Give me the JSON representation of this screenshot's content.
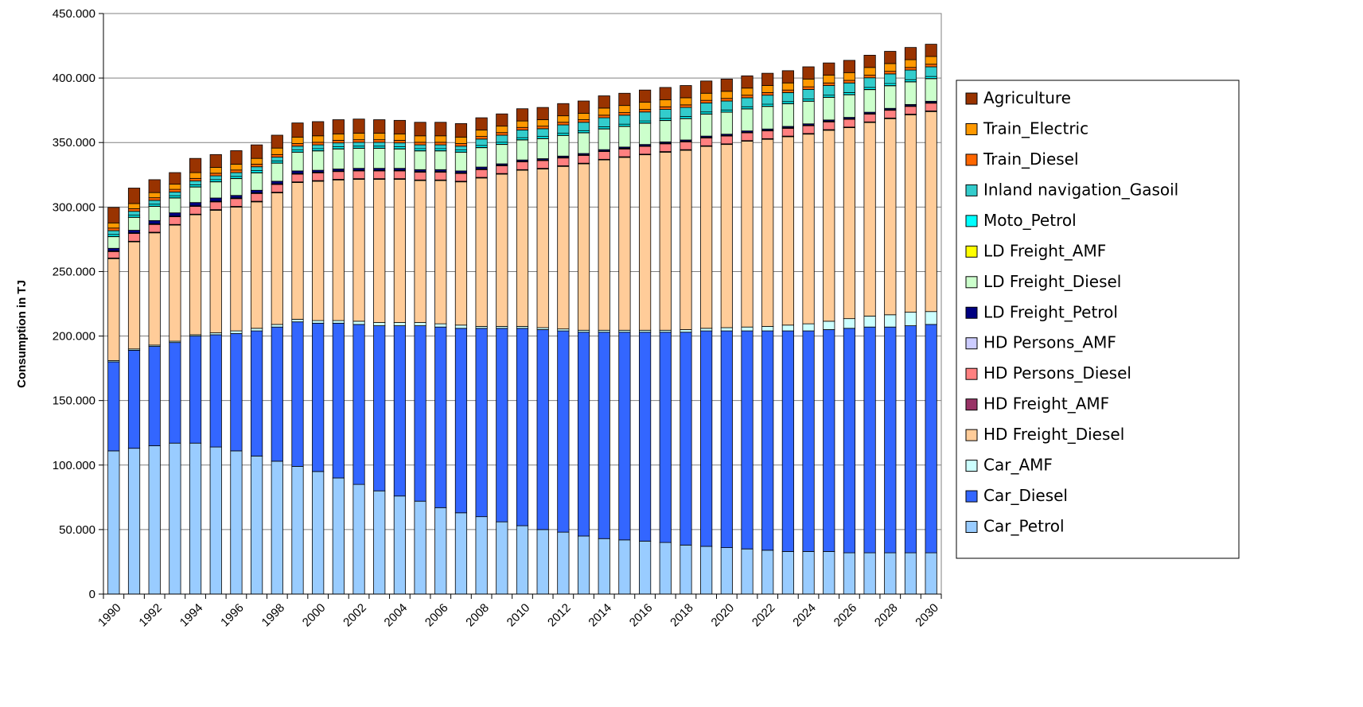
{
  "chart_data": {
    "type": "bar",
    "stacked": true,
    "title": "",
    "xlabel": "",
    "ylabel": "Consumption in TJ",
    "ylim": [
      0,
      450000
    ],
    "ytick_step": 50000,
    "ytick_labels": [
      "0",
      "50.000",
      "100.000",
      "150.000",
      "200.000",
      "250.000",
      "300.000",
      "350.000",
      "400.000",
      "450.000"
    ],
    "xtick_labels": [
      "1990",
      "1992",
      "1994",
      "1996",
      "1998",
      "2000",
      "2002",
      "2004",
      "2006",
      "2008",
      "2010",
      "2012",
      "2014",
      "2016",
      "2018",
      "2020",
      "2022",
      "2024",
      "2026",
      "2028",
      "2030"
    ],
    "grid": true,
    "legend_position": "right",
    "categories": [
      "1990",
      "1991",
      "1992",
      "1993",
      "1994",
      "1995",
      "1996",
      "1997",
      "1998",
      "1999",
      "2000",
      "2001",
      "2002",
      "2003",
      "2004",
      "2005",
      "2006",
      "2007",
      "2008",
      "2009",
      "2010",
      "2011",
      "2012",
      "2013",
      "2014",
      "2015",
      "2016",
      "2017",
      "2018",
      "2019",
      "2020",
      "2021",
      "2022",
      "2023",
      "2024",
      "2025",
      "2026",
      "2027",
      "2028",
      "2029",
      "2030"
    ],
    "series": [
      {
        "name": "Car_Petrol",
        "color": "#99ccff",
        "values": [
          111000,
          113000,
          115000,
          117000,
          117000,
          114000,
          111000,
          107000,
          103000,
          99000,
          95000,
          90000,
          85000,
          80000,
          76000,
          72000,
          67000,
          63000,
          60000,
          56000,
          53000,
          50000,
          48000,
          45000,
          43000,
          42000,
          41000,
          40000,
          38000,
          37000,
          36000,
          35000,
          34000,
          33000,
          33000,
          33000,
          32000,
          32000,
          32000,
          32000,
          32000
        ]
      },
      {
        "name": "Car_Diesel",
        "color": "#3366ff",
        "values": [
          69000,
          76000,
          77000,
          78000,
          83000,
          87000,
          91000,
          97000,
          104000,
          112000,
          115000,
          120000,
          124000,
          128000,
          132000,
          136000,
          140000,
          143000,
          146000,
          150000,
          153000,
          155000,
          156000,
          158000,
          160000,
          161000,
          162000,
          163000,
          165000,
          167000,
          168000,
          169000,
          170000,
          171000,
          171000,
          172000,
          174000,
          175000,
          175000,
          176000,
          177000
        ]
      },
      {
        "name": "Car_AMF",
        "color": "#ccffff",
        "values": [
          1000,
          1000,
          1000,
          1000,
          1000,
          1500,
          2000,
          2000,
          2000,
          2000,
          2000,
          2000,
          2500,
          2500,
          2500,
          2500,
          2500,
          2500,
          1500,
          1500,
          1500,
          1500,
          1500,
          1500,
          1500,
          1500,
          1500,
          1500,
          2000,
          2000,
          2500,
          3000,
          3500,
          4500,
          5500,
          6500,
          7500,
          8500,
          9500,
          10500,
          10000
        ]
      },
      {
        "name": "HD Freight_Diesel",
        "color": "#ffcc99",
        "values": [
          79000,
          83000,
          87000,
          90000,
          93000,
          95000,
          96000,
          98000,
          102000,
          106000,
          108000,
          109000,
          110000,
          111000,
          111000,
          110000,
          111000,
          111000,
          115000,
          118000,
          121000,
          123000,
          126000,
          129000,
          132000,
          134000,
          136000,
          138000,
          139000,
          141000,
          142000,
          144000,
          145000,
          146000,
          147000,
          148000,
          148000,
          150000,
          152000,
          153000,
          155000
        ]
      },
      {
        "name": "HD Freight_AMF",
        "color": "#993366",
        "values": [
          500,
          500,
          500,
          500,
          500,
          500,
          500,
          500,
          500,
          500,
          500,
          500,
          500,
          500,
          500,
          500,
          500,
          500,
          500,
          500,
          500,
          500,
          500,
          500,
          500,
          500,
          500,
          500,
          500,
          500,
          500,
          500,
          500,
          500,
          500,
          500,
          500,
          500,
          500,
          500,
          500
        ]
      },
      {
        "name": "HD Persons_Diesel",
        "color": "#ff8080",
        "values": [
          5000,
          6000,
          6000,
          6000,
          6000,
          6000,
          6000,
          6000,
          6000,
          6000,
          6000,
          6000,
          6000,
          6000,
          6000,
          6000,
          6000,
          6000,
          6000,
          6000,
          6000,
          6000,
          6000,
          6000,
          6000,
          6000,
          6000,
          6000,
          6000,
          6000,
          6000,
          6000,
          6000,
          6000,
          6000,
          6000,
          6000,
          6000,
          6000,
          6000,
          6000
        ]
      },
      {
        "name": "HD Persons_AMF",
        "color": "#ccccff",
        "values": [
          500,
          500,
          500,
          500,
          500,
          500,
          500,
          500,
          500,
          500,
          500,
          500,
          500,
          500,
          500,
          500,
          500,
          500,
          500,
          500,
          500,
          500,
          500,
          500,
          500,
          500,
          500,
          500,
          500,
          500,
          500,
          500,
          500,
          500,
          500,
          500,
          500,
          500,
          500,
          500,
          500
        ]
      },
      {
        "name": "LD Freight_Petrol",
        "color": "#000080",
        "values": [
          2000,
          2000,
          2500,
          2500,
          2500,
          2500,
          2000,
          2000,
          2000,
          2000,
          1500,
          1500,
          1500,
          1500,
          1500,
          1500,
          1500,
          1500,
          1500,
          1000,
          1000,
          1000,
          1000,
          1000,
          1000,
          1000,
          1000,
          1000,
          1000,
          1000,
          1000,
          1000,
          1000,
          1000,
          1000,
          1000,
          1000,
          1000,
          1000,
          1000,
          1000
        ]
      },
      {
        "name": "LD Freight_Diesel",
        "color": "#ccffcc",
        "values": [
          9000,
          10000,
          11000,
          11500,
          12000,
          12500,
          13000,
          13500,
          14000,
          14500,
          15000,
          15500,
          15500,
          15500,
          15000,
          14500,
          14500,
          14500,
          15000,
          15000,
          15500,
          15500,
          16000,
          16000,
          16000,
          16000,
          16500,
          16500,
          16500,
          17000,
          17000,
          17000,
          17500,
          17500,
          17500,
          17500,
          17500,
          17500,
          17500,
          17500,
          17500
        ]
      },
      {
        "name": "LD Freight_AMF",
        "color": "#ffff00",
        "values": [
          200,
          200,
          200,
          200,
          200,
          200,
          200,
          200,
          200,
          200,
          200,
          200,
          200,
          200,
          200,
          200,
          200,
          200,
          200,
          200,
          200,
          200,
          200,
          200,
          200,
          200,
          200,
          200,
          200,
          200,
          200,
          200,
          200,
          200,
          200,
          200,
          200,
          200,
          200,
          200,
          200
        ]
      },
      {
        "name": "Moto_Petrol",
        "color": "#00ffff",
        "values": [
          1500,
          1500,
          1500,
          1500,
          1500,
          1500,
          1500,
          1500,
          1500,
          1500,
          1500,
          1500,
          1500,
          1500,
          1500,
          1500,
          1500,
          1500,
          1500,
          1500,
          1500,
          1500,
          1500,
          1500,
          1500,
          1500,
          1500,
          1500,
          1500,
          1500,
          1500,
          1500,
          1500,
          1500,
          1500,
          1500,
          1500,
          1500,
          1500,
          1500,
          1500
        ]
      },
      {
        "name": "Inland navigation_Gasoil",
        "color": "#33cccc",
        "values": [
          3000,
          3000,
          3000,
          3000,
          3000,
          3000,
          3000,
          3000,
          3000,
          3000,
          3000,
          3000,
          3000,
          3000,
          3000,
          3000,
          3000,
          3000,
          5000,
          5500,
          6000,
          6000,
          6500,
          6500,
          7000,
          7000,
          7000,
          7000,
          7000,
          7000,
          7000,
          7000,
          7000,
          7000,
          7500,
          7500,
          7500,
          7500,
          7500,
          7500,
          7500
        ]
      },
      {
        "name": "Train_Diesel",
        "color": "#ff6600",
        "values": [
          2000,
          2000,
          2000,
          2000,
          2000,
          2000,
          2000,
          2000,
          2000,
          2000,
          2000,
          2000,
          2000,
          2000,
          2000,
          2000,
          2000,
          2000,
          2000,
          2000,
          2000,
          2000,
          2000,
          2000,
          2000,
          2000,
          2000,
          2000,
          2000,
          2000,
          2000,
          2000,
          2000,
          2000,
          2000,
          2000,
          2000,
          2000,
          2000,
          2000,
          2000
        ]
      },
      {
        "name": "Train_Electric",
        "color": "#ff9900",
        "values": [
          4000,
          4000,
          4000,
          4000,
          4500,
          4500,
          4500,
          4500,
          5000,
          5000,
          5000,
          5000,
          5000,
          5000,
          5000,
          5000,
          5000,
          5000,
          5000,
          5000,
          5000,
          5000,
          5000,
          5000,
          5500,
          5500,
          5500,
          5500,
          5500,
          5500,
          5500,
          5500,
          5500,
          5500,
          6000,
          6000,
          6000,
          6000,
          6000,
          6000,
          6000
        ]
      },
      {
        "name": "Agriculture",
        "color": "#993300",
        "values": [
          12000,
          12000,
          10000,
          9000,
          11000,
          10000,
          10500,
          10500,
          10000,
          11000,
          11000,
          11000,
          11000,
          10500,
          10500,
          10500,
          10500,
          10500,
          9500,
          9500,
          9500,
          9500,
          9500,
          9500,
          9500,
          9500,
          9500,
          9500,
          9500,
          9500,
          9500,
          9500,
          9500,
          9500,
          9500,
          9500,
          9500,
          9500,
          9500,
          9500,
          9500
        ]
      }
    ]
  }
}
